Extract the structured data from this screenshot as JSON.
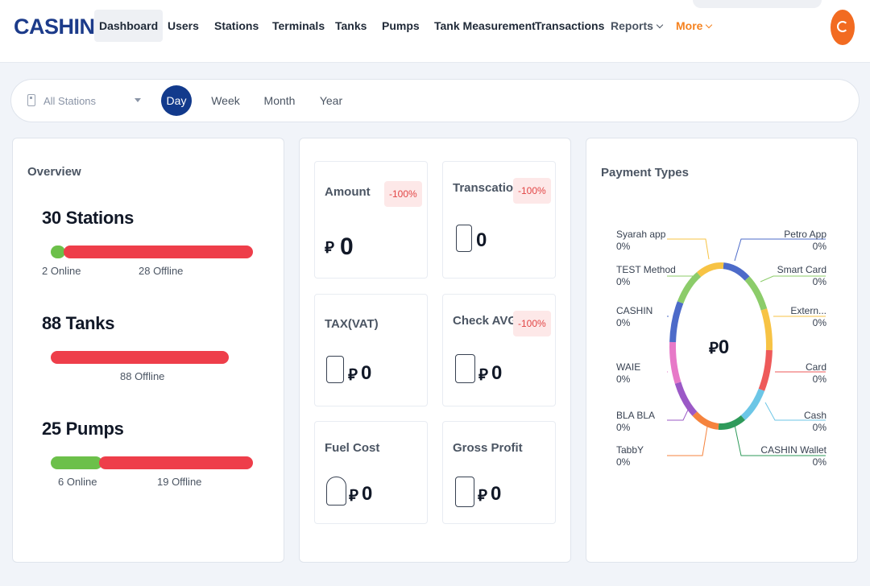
{
  "header": {
    "logo": "CASHIN",
    "nav": [
      {
        "label": "Dashboard"
      },
      {
        "label": "Users"
      },
      {
        "label": "Stations"
      },
      {
        "label": "Terminals"
      },
      {
        "label": "Tanks"
      },
      {
        "label": "Pumps"
      },
      {
        "label": "Tank Measurement"
      },
      {
        "label": "Transactions"
      },
      {
        "label": "Reports"
      },
      {
        "label": "More"
      }
    ],
    "avatar_initial": "C",
    "active_nav": "Dashboard",
    "accent_color": "#f5821f",
    "brand_color": "#1c3b8a"
  },
  "filter": {
    "station_select": "All Stations",
    "periods": [
      {
        "label": "Day"
      },
      {
        "label": "Week"
      },
      {
        "label": "Month"
      },
      {
        "label": "Year"
      }
    ],
    "active_period": "Day"
  },
  "overview": {
    "title": "Overview",
    "stations": {
      "heading": "30 Stations",
      "online_label": "2 Online",
      "offline_label": "28 Offline",
      "online": 2,
      "offline": 28
    },
    "tanks": {
      "heading": "88 Tanks",
      "offline_label": "88 Offline",
      "online": 0,
      "offline": 88
    },
    "pumps": {
      "heading": "25 Pumps",
      "online_label": "6 Online",
      "offline_label": "19 Offline",
      "online": 6,
      "offline": 19
    },
    "online_color": "#6cc04a",
    "offline_color": "#ee3e4a"
  },
  "stats": {
    "currency_symbol": "⃁",
    "amount": {
      "label": "Amount",
      "badge": "-100%",
      "value": "0"
    },
    "transactions": {
      "label": "Transcations",
      "badge": "-100%",
      "value": "0"
    },
    "tax": {
      "label": "TAX(VAT)",
      "value": "0"
    },
    "check_avg": {
      "label": "Check AVG",
      "badge": "-100%",
      "value": "0"
    },
    "fuel_cost": {
      "label": "Fuel Cost",
      "value": "0"
    },
    "gross_profit": {
      "label": "Gross Profit",
      "value": "0"
    }
  },
  "payment_types": {
    "title": "Payment Types",
    "center_value": "0",
    "legend": [
      {
        "name": "Syarah app",
        "pct": "0%",
        "color": "#f7c344"
      },
      {
        "name": "Petro App",
        "pct": "0%",
        "color": "#4d6bc9"
      },
      {
        "name": "TEST Method",
        "pct": "0%",
        "color": "#8ccc6a"
      },
      {
        "name": "Smart Card",
        "pct": "0%",
        "color": "#8ccc6a"
      },
      {
        "name": "CASHIN",
        "pct": "0%",
        "color": "#4d6bc9"
      },
      {
        "name": "Extern...",
        "pct": "0%",
        "color": "#f7c344"
      },
      {
        "name": "WAIE",
        "pct": "0%",
        "color": "#e779c8"
      },
      {
        "name": "Card",
        "pct": "0%",
        "color": "#ee5a5a"
      },
      {
        "name": "BLA BLA",
        "pct": "0%",
        "color": "#9b59c6"
      },
      {
        "name": "Cash",
        "pct": "0%",
        "color": "#6cc6e6"
      },
      {
        "name": "TabbY",
        "pct": "0%",
        "color": "#f5833d"
      },
      {
        "name": "CASHIN Wallet",
        "pct": "0%",
        "color": "#2e9a5a"
      }
    ]
  }
}
